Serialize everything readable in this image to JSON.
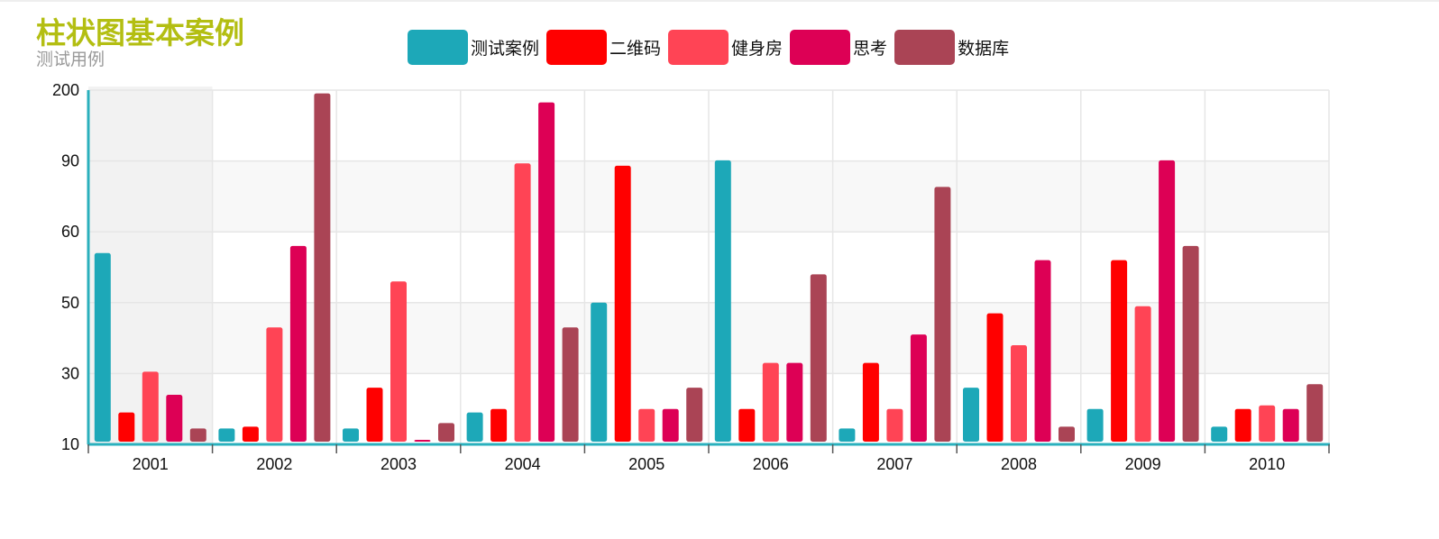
{
  "colors": [
    "#1da8b8",
    "#ff0000",
    "#ff4455",
    "#dd0055",
    "#aa4455"
  ],
  "chart_data": {
    "type": "bar",
    "title": "柱状图基本案例",
    "subtitle": "测试用例",
    "categories": [
      "2001",
      "2002",
      "2003",
      "2004",
      "2005",
      "2006",
      "2007",
      "2008",
      "2009",
      "2010"
    ],
    "y_ticks": [
      "10",
      "30",
      "50",
      "60",
      "90",
      "200"
    ],
    "y_scale": "categorical-ticks",
    "legend_position": "top-center",
    "grid": true,
    "highlighted_category": "2001",
    "series": [
      {
        "name": "测试案例",
        "values": [
          57,
          14.5,
          14.5,
          19,
          50,
          91,
          14.5,
          26,
          20,
          15
        ]
      },
      {
        "name": "二维码",
        "values": [
          19,
          15,
          26,
          20,
          88,
          20,
          33,
          47,
          56,
          20
        ]
      },
      {
        "name": "健身房",
        "values": [
          30.5,
          43,
          53,
          89,
          20,
          33,
          20,
          38,
          49,
          21
        ]
      },
      {
        "name": "思考",
        "values": [
          24,
          58,
          11,
          181,
          20,
          33,
          41,
          56,
          91,
          20
        ]
      },
      {
        "name": "数据库",
        "values": [
          14.5,
          195,
          16,
          43,
          26,
          54,
          79,
          15,
          58,
          27
        ]
      }
    ]
  }
}
